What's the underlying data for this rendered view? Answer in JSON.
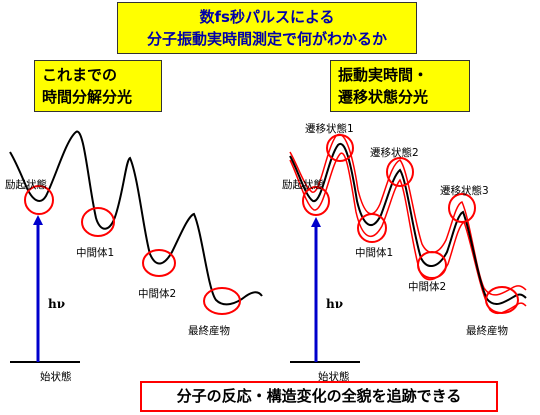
{
  "title": {
    "line1": "数fs秒パルスによる",
    "line2": "分子振動実時間測定で何がわかるか"
  },
  "left_heading": {
    "line1": "これまでの",
    "line2": "時間分解分光"
  },
  "right_heading": {
    "line1": "振動実時間・",
    "line2": "遷移状態分光"
  },
  "left_diagram": {
    "excited_state": "励起状態",
    "intermediate1": "中間体1",
    "intermediate2": "中間体2",
    "final_product": "最終産物",
    "hv": "hν",
    "initial_state": "始状態"
  },
  "right_diagram": {
    "excited_state": "励起状態",
    "transition1": "遷移状態1",
    "transition2": "遷移状態2",
    "transition3": "遷移状態3",
    "intermediate1": "中間体1",
    "intermediate2": "中間体2",
    "final_product": "最終産物",
    "hv": "hν",
    "initial_state": "始状態"
  },
  "conclusion": "分子の反応・構造変化の全貌を追跡できる",
  "colors": {
    "heading_bg": "#ffff00",
    "title_text": "#0000aa",
    "highlight": "#ff0000",
    "arrow": "#0000cc",
    "curve": "#000000"
  }
}
